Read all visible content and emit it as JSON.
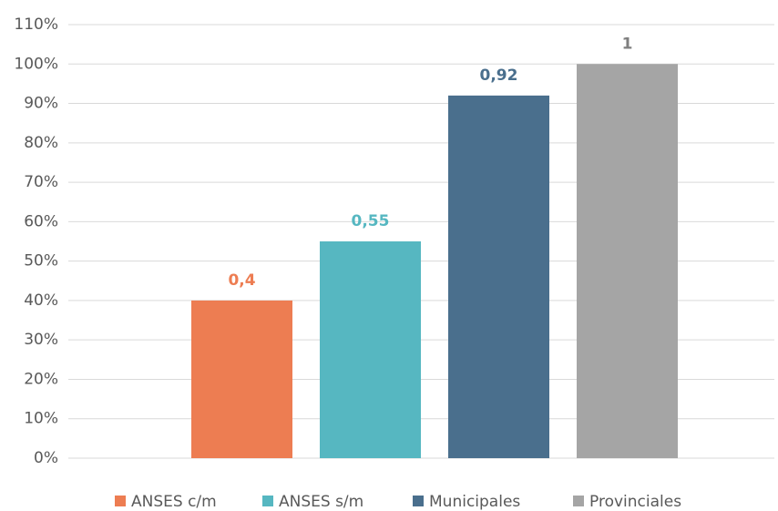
{
  "chart_data": {
    "type": "bar",
    "series": [
      {
        "name": "ANSES c/m",
        "color": "#ed7d52",
        "values": [
          40
        ],
        "value_labels": [
          "0,4"
        ]
      },
      {
        "name": "ANSES s/m",
        "color": "#56b7c1",
        "values": [
          55
        ],
        "value_labels": [
          "0,55"
        ]
      },
      {
        "name": "Municipales",
        "color": "#4a6f8d",
        "values": [
          92
        ],
        "value_labels": [
          "0,92"
        ]
      },
      {
        "name": "Provinciales",
        "color": "#a5a5a5",
        "values": [
          100
        ],
        "value_labels": [
          "1"
        ]
      }
    ],
    "ylim": [
      0,
      110
    ],
    "yticks": [
      {
        "value": 0,
        "label": "0%"
      },
      {
        "value": 10,
        "label": "10%"
      },
      {
        "value": 20,
        "label": "20%"
      },
      {
        "value": 30,
        "label": "30%"
      },
      {
        "value": 40,
        "label": "40%"
      },
      {
        "value": 50,
        "label": "50%"
      },
      {
        "value": 60,
        "label": "60%"
      },
      {
        "value": 70,
        "label": "70%"
      },
      {
        "value": 80,
        "label": "80%"
      },
      {
        "value": 90,
        "label": "90%"
      },
      {
        "value": 100,
        "label": "100%"
      },
      {
        "value": 110,
        "label": "110%"
      }
    ],
    "grid": true
  }
}
